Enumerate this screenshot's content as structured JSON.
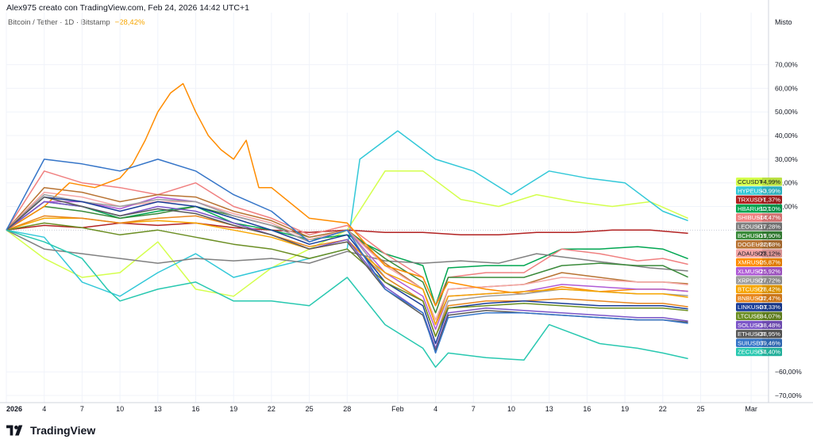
{
  "header": {
    "creator_line": "Alex975 creato con TradingView.com, Feb 24, 2026 14:42 UTC+1",
    "symbol": "Bitcoin / Tether · 1D · Bitstamp",
    "symbol_change": "−28,42%"
  },
  "branding": {
    "logo_text": "TradingView"
  },
  "chart_data": {
    "type": "line",
    "scale_mode": "Misto",
    "ylabel": "",
    "ylim": [
      -73,
      92
    ],
    "y_ticks": [
      -70,
      -60,
      10,
      20,
      30,
      40,
      50,
      60,
      70
    ],
    "y_tick_labels": [
      "−70,00%",
      "−60,00%",
      "10,00%",
      "20,00%",
      "30,00%",
      "40,00%",
      "50,00%",
      "60,00%",
      "70,00%"
    ],
    "x_ticks": [
      "2026",
      "4",
      "7",
      "10",
      "13",
      "16",
      "19",
      "22",
      "25",
      "28",
      "Feb",
      "4",
      "7",
      "10",
      "13",
      "16",
      "19",
      "22",
      "25",
      "Mar"
    ],
    "x_tick_days": [
      0,
      3,
      6,
      9,
      12,
      15,
      18,
      21,
      24,
      27,
      31,
      34,
      37,
      40,
      43,
      46,
      49,
      52,
      55,
      59
    ],
    "baseline": 0,
    "legend_position": "right",
    "series": [
      {
        "name": "CCUSDT",
        "label": "+4,99%",
        "color": "#d4ff4d",
        "x": [
          0,
          3,
          6,
          9,
          12,
          15,
          18,
          21,
          24,
          27,
          30,
          33,
          36,
          39,
          42,
          45,
          48,
          51,
          54
        ],
        "values": [
          0,
          -12,
          -20,
          -18,
          -5,
          -25,
          -28,
          -16,
          -8,
          0,
          25,
          25,
          13,
          10,
          15,
          12,
          10,
          12,
          5
        ]
      },
      {
        "name": "HYPEUSD",
        "label": "+3,99%",
        "color": "#32c8d8",
        "x": [
          0,
          3,
          6,
          9,
          12,
          15,
          18,
          21,
          24,
          27,
          28,
          31,
          34,
          37,
          40,
          43,
          46,
          49,
          52,
          54
        ],
        "values": [
          0,
          -3,
          -22,
          -28,
          -18,
          -10,
          -20,
          -16,
          -12,
          -8,
          30,
          42,
          30,
          25,
          15,
          25,
          22,
          20,
          8,
          4
        ]
      },
      {
        "name": "TRXUSDT",
        "label": "−1,37%",
        "color": "#b22222",
        "x": [
          0,
          3,
          6,
          9,
          12,
          15,
          18,
          21,
          24,
          27,
          30,
          33,
          36,
          39,
          42,
          45,
          48,
          51,
          54
        ],
        "values": [
          0,
          2,
          1,
          3,
          2,
          3,
          1,
          0,
          -1,
          0,
          -1,
          -1,
          -2,
          -2,
          -1,
          -1,
          0,
          0,
          -1.37
        ]
      },
      {
        "name": "HBARUSDT",
        "label": "−12,10%",
        "color": "#00a651",
        "x": [
          0,
          3,
          6,
          9,
          12,
          15,
          18,
          21,
          24,
          27,
          30,
          33,
          34,
          35,
          38,
          41,
          44,
          47,
          50,
          52,
          54
        ],
        "values": [
          0,
          12,
          10,
          5,
          8,
          10,
          3,
          0,
          -4,
          -2,
          -10,
          -15,
          -32,
          -16,
          -15,
          -15,
          -8,
          -8,
          -7,
          -8,
          -12.1
        ]
      },
      {
        "name": "SHIBUSDT",
        "label": "−14,47%",
        "color": "#f08080",
        "x": [
          0,
          3,
          6,
          9,
          12,
          15,
          18,
          21,
          24,
          27,
          30,
          33,
          34,
          35,
          38,
          41,
          44,
          47,
          50,
          52,
          54
        ],
        "values": [
          0,
          25,
          20,
          18,
          15,
          20,
          10,
          5,
          -2,
          2,
          -10,
          -20,
          -32,
          -20,
          -18,
          -18,
          -8,
          -10,
          -13,
          -12,
          -14.47
        ]
      },
      {
        "name": "LEOUSDT",
        "label": "−17,28%",
        "color": "#808080",
        "x": [
          0,
          3,
          6,
          9,
          12,
          15,
          18,
          21,
          24,
          27,
          30,
          33,
          36,
          39,
          42,
          45,
          48,
          51,
          54
        ],
        "values": [
          0,
          -8,
          -10,
          -12,
          -14,
          -12,
          -13,
          -12,
          -14,
          -9,
          -13,
          -14,
          -13,
          -14,
          -10,
          -12,
          -14,
          -16,
          -17.28
        ]
      },
      {
        "name": "BCHUSDT",
        "label": "−19,90%",
        "color": "#3a8a3a",
        "x": [
          0,
          3,
          6,
          9,
          12,
          15,
          18,
          21,
          24,
          27,
          30,
          33,
          34,
          35,
          38,
          41,
          44,
          47,
          50,
          52,
          54
        ],
        "values": [
          0,
          10,
          8,
          5,
          7,
          10,
          6,
          2,
          -3,
          0,
          -12,
          -22,
          -35,
          -20,
          -20,
          -20,
          -15,
          -14,
          -15,
          -15,
          -19.9
        ]
      },
      {
        "name": "DOGEUSDT",
        "label": "−22,68%",
        "color": "#b87333",
        "x": [
          0,
          3,
          6,
          9,
          12,
          15,
          18,
          21,
          24,
          27,
          30,
          33,
          34,
          35,
          38,
          41,
          44,
          47,
          50,
          52,
          54
        ],
        "values": [
          0,
          18,
          16,
          12,
          15,
          14,
          8,
          4,
          -3,
          0,
          -14,
          -25,
          -40,
          -25,
          -24,
          -23,
          -18,
          -20,
          -22,
          -22,
          -22.68
        ]
      },
      {
        "name": "ADAUSDT",
        "label": "−23,12%",
        "color": "#f4a6a6",
        "x": [
          0,
          3,
          6,
          9,
          12,
          15,
          18,
          21,
          24,
          27,
          30,
          33,
          34,
          35,
          38,
          41,
          44,
          47,
          50,
          52,
          54
        ],
        "values": [
          0,
          16,
          14,
          10,
          12,
          12,
          7,
          3,
          -4,
          0,
          -15,
          -25,
          -38,
          -25,
          -24,
          -23,
          -20,
          -21,
          -22,
          -22,
          -23.12
        ]
      },
      {
        "name": "XMRUSD",
        "label": "−25,87%",
        "color": "#ff8c00",
        "x": [
          0,
          3,
          5,
          7,
          9,
          10,
          11,
          12,
          13,
          14,
          15,
          16,
          17,
          18,
          19,
          20,
          21,
          24,
          27,
          30,
          33,
          34,
          35,
          38,
          41,
          44,
          47,
          50,
          52,
          54
        ],
        "values": [
          0,
          10,
          20,
          18,
          22,
          28,
          38,
          50,
          58,
          62,
          50,
          40,
          34,
          30,
          38,
          18,
          18,
          5,
          3,
          -15,
          -20,
          -32,
          -22,
          -25,
          -27,
          -24,
          -26,
          -25,
          -25,
          -25.87
        ]
      },
      {
        "name": "XLMUSD",
        "label": "−25,92%",
        "color": "#b05cd6",
        "x": [
          0,
          3,
          6,
          9,
          12,
          15,
          18,
          21,
          24,
          27,
          30,
          33,
          34,
          35,
          38,
          41,
          44,
          47,
          50,
          52,
          54
        ],
        "values": [
          0,
          12,
          12,
          9,
          14,
          12,
          6,
          2,
          -5,
          0,
          -18,
          -28,
          -42,
          -28,
          -27,
          -26,
          -23,
          -24,
          -25,
          -25,
          -25.92
        ]
      },
      {
        "name": "XRPUSDT",
        "label": "−27,72%",
        "color": "#9e9e9e",
        "x": [
          0,
          3,
          6,
          9,
          12,
          15,
          18,
          21,
          24,
          27,
          30,
          33,
          34,
          35,
          38,
          41,
          44,
          47,
          50,
          52,
          54
        ],
        "values": [
          0,
          15,
          12,
          10,
          13,
          12,
          6,
          2,
          -5,
          0,
          -20,
          -30,
          -45,
          -30,
          -28,
          -27,
          -25,
          -26,
          -27,
          -27,
          -27.72
        ]
      },
      {
        "name": "BTCUSDT",
        "label": "−28,42%",
        "color": "#f7a600",
        "x": [
          0,
          3,
          6,
          9,
          12,
          15,
          18,
          21,
          24,
          27,
          30,
          33,
          34,
          35,
          38,
          41,
          44,
          47,
          50,
          52,
          54
        ],
        "values": [
          0,
          5,
          5,
          3,
          4,
          3,
          0,
          -3,
          -8,
          -5,
          -18,
          -25,
          -40,
          -28,
          -27,
          -26,
          -25,
          -26,
          -27,
          -27,
          -28.42
        ]
      },
      {
        "name": "BNBUSDT",
        "label": "−32,47%",
        "color": "#e8871e",
        "x": [
          0,
          3,
          6,
          9,
          12,
          15,
          18,
          21,
          24,
          27,
          30,
          33,
          34,
          35,
          38,
          41,
          44,
          47,
          50,
          52,
          54
        ],
        "values": [
          0,
          6,
          5,
          3,
          5,
          6,
          2,
          -2,
          -7,
          -4,
          -20,
          -30,
          -45,
          -32,
          -30,
          -30,
          -29,
          -30,
          -31,
          -31,
          -32.47
        ]
      },
      {
        "name": "LINKUSDT",
        "label": "−33,33%",
        "color": "#1a3d99",
        "x": [
          0,
          3,
          6,
          9,
          12,
          15,
          18,
          21,
          24,
          27,
          30,
          33,
          34,
          35,
          38,
          41,
          44,
          47,
          50,
          52,
          54
        ],
        "values": [
          0,
          14,
          12,
          8,
          12,
          10,
          5,
          0,
          -6,
          -2,
          -22,
          -32,
          -48,
          -33,
          -31,
          -30,
          -31,
          -32,
          -32,
          -32,
          -33.33
        ]
      },
      {
        "name": "LTCUSD",
        "label": "−34,07%",
        "color": "#6b8e23",
        "x": [
          0,
          3,
          6,
          9,
          12,
          15,
          18,
          21,
          24,
          27,
          30,
          33,
          34,
          35,
          38,
          41,
          44,
          47,
          50,
          52,
          54
        ],
        "values": [
          0,
          3,
          1,
          -2,
          0,
          -3,
          -6,
          -8,
          -12,
          -8,
          -22,
          -30,
          -45,
          -33,
          -32,
          -31,
          -32,
          -33,
          -33,
          -33,
          -34.07
        ]
      },
      {
        "name": "SOLUSD",
        "label": "−38,48%",
        "color": "#7b55c7",
        "x": [
          0,
          3,
          6,
          9,
          12,
          15,
          18,
          21,
          24,
          27,
          30,
          33,
          34,
          35,
          38,
          41,
          44,
          47,
          50,
          52,
          54
        ],
        "values": [
          0,
          12,
          10,
          6,
          10,
          8,
          3,
          -2,
          -8,
          -4,
          -24,
          -35,
          -50,
          -35,
          -33,
          -34,
          -35,
          -36,
          -37,
          -37,
          -38.48
        ]
      },
      {
        "name": "ETHUSDT",
        "label": "−38,95%",
        "color": "#5a5a5a",
        "x": [
          0,
          3,
          6,
          9,
          12,
          15,
          18,
          21,
          24,
          27,
          30,
          33,
          34,
          35,
          38,
          41,
          44,
          47,
          50,
          52,
          54
        ],
        "values": [
          0,
          14,
          10,
          6,
          9,
          7,
          2,
          -2,
          -8,
          -5,
          -25,
          -36,
          -51,
          -36,
          -34,
          -35,
          -36,
          -37,
          -38,
          -38,
          -38.95
        ]
      },
      {
        "name": "SUIUSDT",
        "label": "−39,46%",
        "color": "#3575c8",
        "x": [
          0,
          3,
          6,
          9,
          12,
          15,
          18,
          21,
          24,
          27,
          30,
          33,
          34,
          35,
          38,
          41,
          44,
          47,
          50,
          52,
          54
        ],
        "values": [
          0,
          30,
          28,
          25,
          30,
          25,
          15,
          8,
          -5,
          0,
          -25,
          -35,
          -52,
          -37,
          -35,
          -35,
          -36,
          -37,
          -38,
          -38,
          -39.46
        ]
      },
      {
        "name": "ZECUSDT",
        "label": "−54,40%",
        "color": "#28c8b0",
        "x": [
          0,
          3,
          6,
          8,
          9,
          12,
          15,
          18,
          21,
          24,
          27,
          30,
          33,
          34,
          35,
          38,
          41,
          43,
          44,
          47,
          50,
          52,
          54
        ],
        "values": [
          0,
          -5,
          -12,
          -25,
          -30,
          -25,
          -22,
          -30,
          -30,
          -32,
          -20,
          -40,
          -50,
          -58,
          -52,
          -54,
          -55,
          -40,
          -42,
          -48,
          -50,
          -52,
          -54.4
        ]
      }
    ]
  }
}
